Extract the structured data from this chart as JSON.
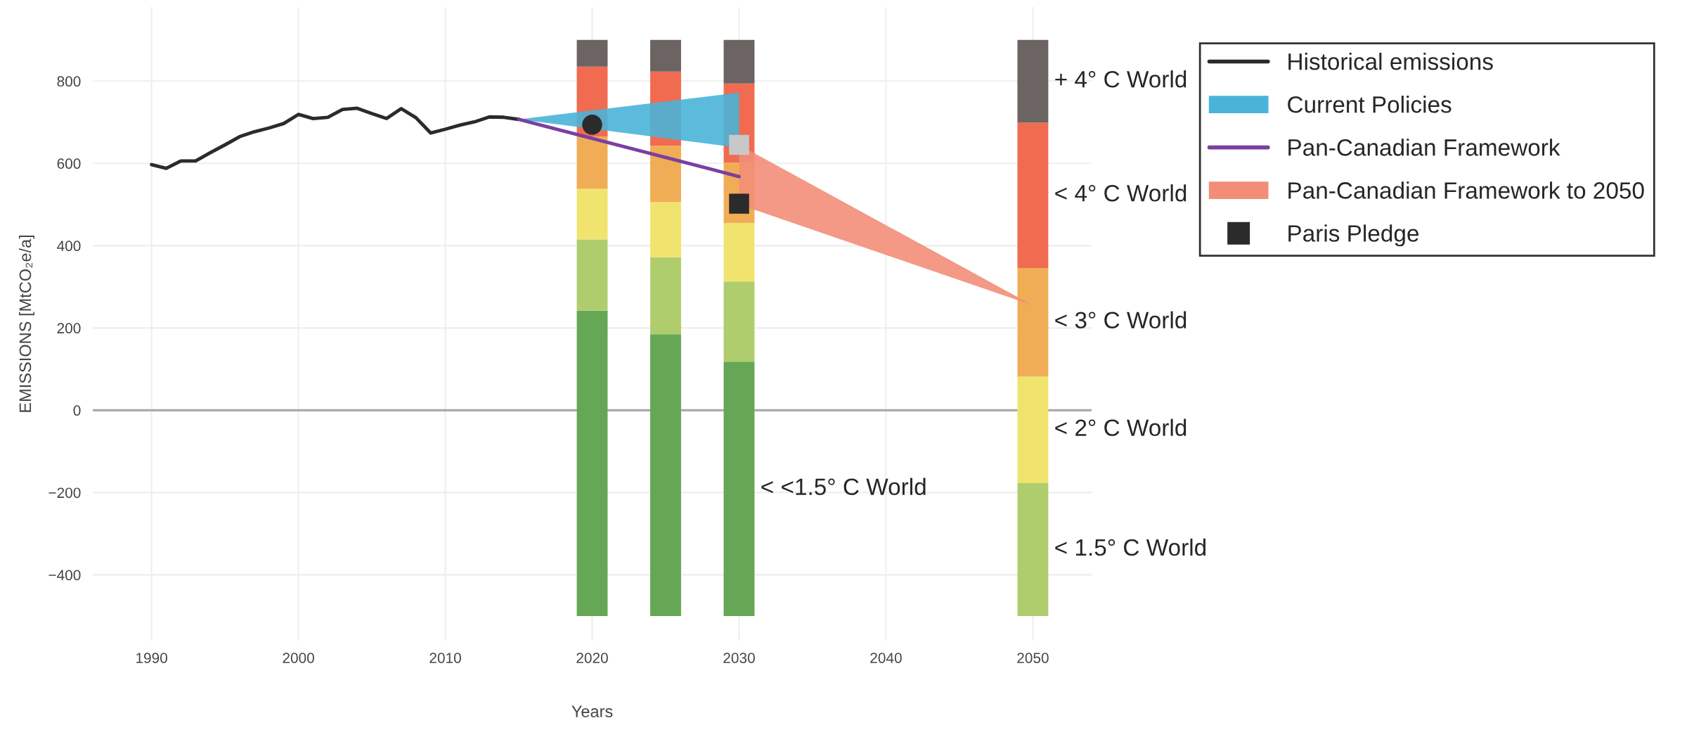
{
  "chart_data": {
    "type": "bar",
    "xlabel": "Years",
    "ylabel": "EMISSIONS [MtCO₂e/a]",
    "xlim": [
      1986,
      2054
    ],
    "xticks": [
      1990,
      2000,
      2010,
      2020,
      2030,
      2040,
      2050
    ],
    "ylim": [
      -560,
      980
    ],
    "yticks": [
      {
        "value": -400,
        "label": "−400"
      },
      {
        "value": -200,
        "label": "−200"
      },
      0,
      200,
      400,
      600,
      800
    ],
    "grid": true,
    "legend": "top right",
    "ref_lines": [
      {
        "axis": "y",
        "value": 0,
        "color": "#aaaaaa"
      }
    ],
    "series": [
      {
        "name": "< <1.5° C World",
        "color": "#65a755",
        "x": [
          2020,
          2025,
          2030
        ],
        "base": [
          -500,
          -500,
          -500
        ],
        "values": [
          742,
          685,
          618
        ]
      },
      {
        "name": "< 1.5° C World",
        "color": "#b0cd6e",
        "x": [
          2020,
          2025,
          2030,
          2050
        ],
        "base": [
          242,
          185,
          118,
          -500
        ],
        "values": [
          173,
          187,
          195,
          323
        ]
      },
      {
        "name": "< 2° C World",
        "color": "#f0e46e",
        "x": [
          2020,
          2025,
          2030,
          2050
        ],
        "base": [
          415,
          372,
          313,
          -177
        ],
        "values": [
          123,
          134,
          142,
          259
        ]
      },
      {
        "name": "< 3° C World",
        "color": "#f0ad55",
        "x": [
          2020,
          2025,
          2030,
          2050
        ],
        "base": [
          538,
          506,
          455,
          82
        ],
        "values": [
          127,
          137,
          147,
          264
        ]
      },
      {
        "name": "< 4° C World",
        "color": "#f06b50",
        "x": [
          2020,
          2025,
          2030,
          2050
        ],
        "base": [
          665,
          643,
          602,
          346
        ],
        "values": [
          170,
          180,
          192,
          353
        ]
      },
      {
        "name": "+ 4° C World",
        "color": "#6b6462",
        "x": [
          2020,
          2025,
          2030,
          2050
        ],
        "base": [
          835,
          823,
          794,
          699
        ],
        "values": [
          65,
          77,
          106,
          201
        ]
      },
      {
        "name": "Historical emissions",
        "type": "line",
        "color": "#2b2b2b",
        "x": [
          1990,
          1991,
          1992,
          1993,
          1994,
          1995,
          1996,
          1997,
          1998,
          1999,
          2000,
          2001,
          2002,
          2003,
          2004,
          2005,
          2006,
          2007,
          2008,
          2009,
          2010,
          2011,
          2012,
          2013,
          2014,
          2015
        ],
        "values": [
          597,
          588,
          606,
          606,
          626,
          645,
          665,
          677,
          686,
          697,
          719,
          709,
          712,
          731,
          734,
          721,
          709,
          733,
          711,
          674,
          683,
          693,
          701,
          713,
          712,
          707
        ]
      },
      {
        "name": "Current Policies",
        "type": "area",
        "color": "#4ab4d8",
        "x": [
          2015,
          2030
        ],
        "values": [
          null,
          null
        ],
        "upper": [
          707,
          772
        ],
        "lower": [
          707,
          638
        ]
      },
      {
        "name": "Pan-Canadian Framework",
        "type": "line",
        "color": "#7b3fa0",
        "x": [
          2015,
          2030
        ],
        "values": [
          707,
          568
        ]
      },
      {
        "name": "Pan-Canadian Framework to 2050",
        "type": "area",
        "color": "#f28e78",
        "x": [
          2030,
          2050
        ],
        "values": [
          null,
          null
        ],
        "upper": [
          645,
          255
        ],
        "lower": [
          500,
          255
        ]
      },
      {
        "type": "scatter",
        "marker": "circle",
        "color": "#2b2b2b",
        "x": [
          2020
        ],
        "values": [
          694
        ]
      },
      {
        "type": "scatter",
        "marker": "square",
        "color": "#c8c8c8",
        "x": [
          2030
        ],
        "values": [
          645
        ]
      },
      {
        "name": "Paris Pledge",
        "type": "scatter",
        "marker": "square",
        "color": "#2b2b2b",
        "x": [
          2030
        ],
        "values": [
          502
        ]
      }
    ]
  }
}
